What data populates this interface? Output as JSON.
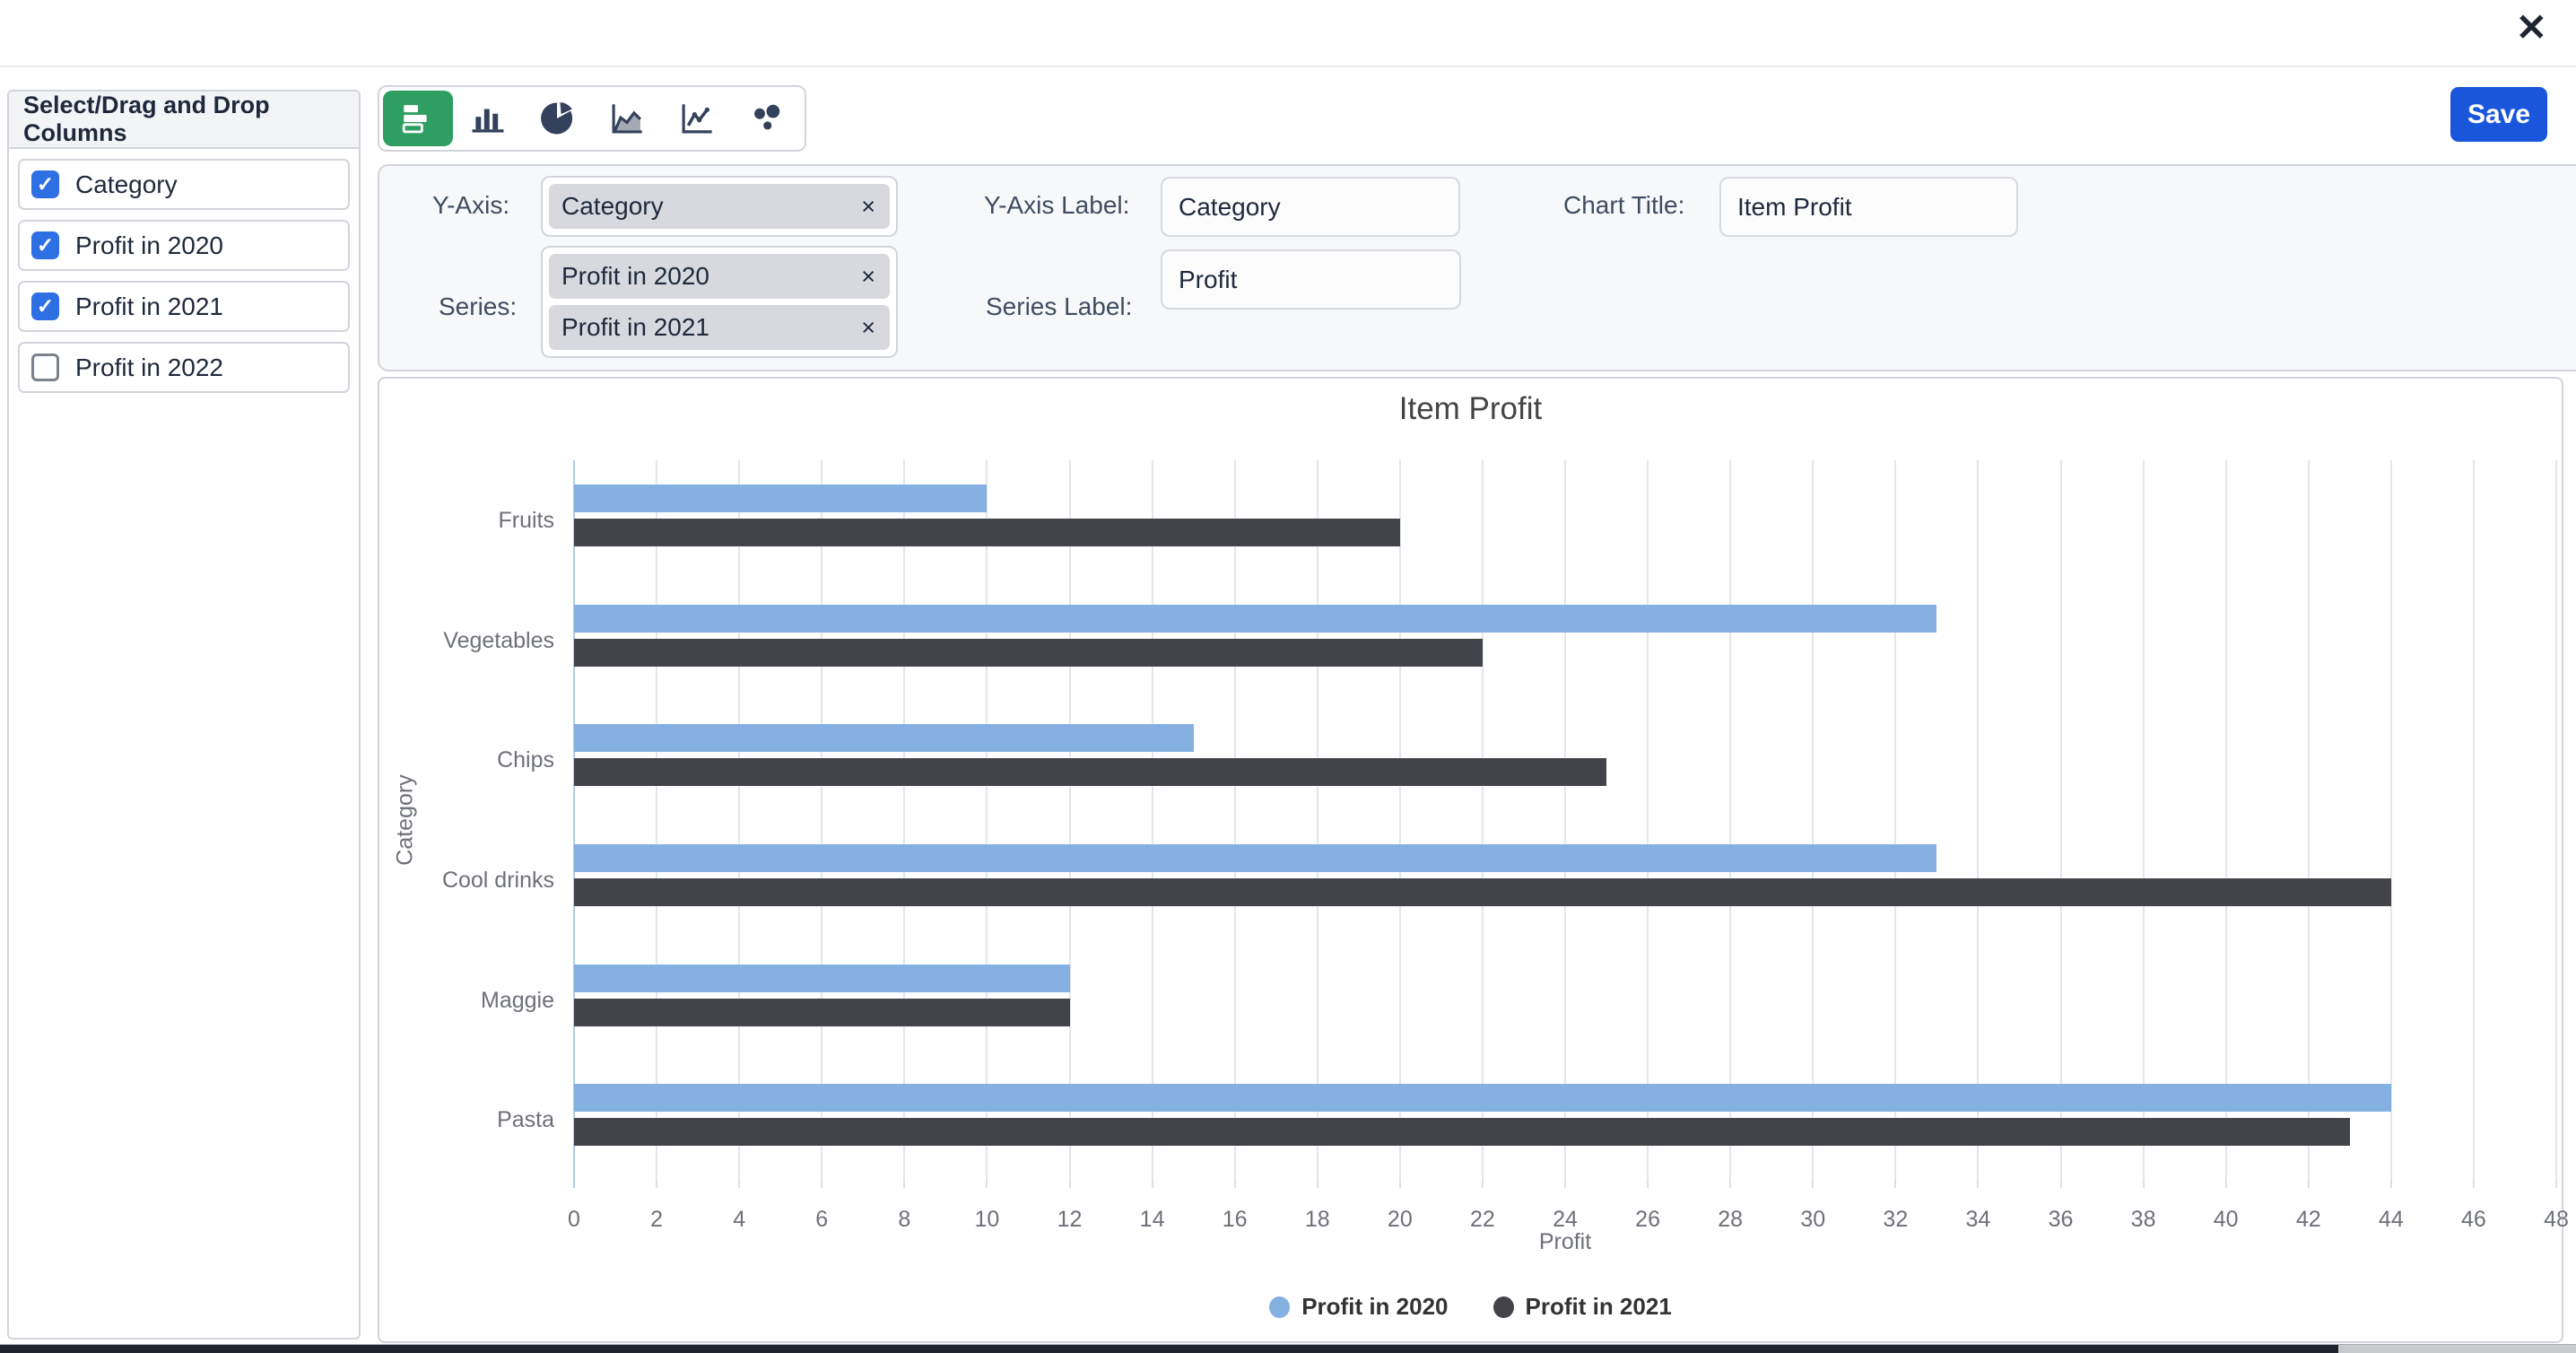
{
  "window": {
    "close_icon": "✕"
  },
  "sidebar": {
    "title": "Select/Drag and Drop Columns",
    "items": [
      {
        "label": "Category",
        "checked": true
      },
      {
        "label": "Profit in 2020",
        "checked": true
      },
      {
        "label": "Profit in 2021",
        "checked": true
      },
      {
        "label": "Profit in 2022",
        "checked": false
      }
    ]
  },
  "toolbar": {
    "save_label": "Save",
    "chart_types": [
      {
        "name": "horizontal-bar",
        "selected": true
      },
      {
        "name": "column",
        "selected": false
      },
      {
        "name": "pie",
        "selected": false
      },
      {
        "name": "area",
        "selected": false
      },
      {
        "name": "line",
        "selected": false
      },
      {
        "name": "scatter",
        "selected": false
      }
    ]
  },
  "fields": {
    "y_axis": {
      "label": "Y-Axis:",
      "chips": [
        "Category"
      ]
    },
    "series": {
      "label": "Series:",
      "chips": [
        "Profit in 2020",
        "Profit in 2021"
      ]
    },
    "y_axis_label": {
      "label": "Y-Axis Label:",
      "value": "Category"
    },
    "series_label": {
      "label": "Series Label:",
      "value": "Profit"
    },
    "chart_title": {
      "label": "Chart Title:",
      "value": "Item Profit"
    },
    "chip_remove_icon": "×"
  },
  "chart_data": {
    "type": "bar",
    "orientation": "horizontal",
    "title": "Item Profit",
    "categories": [
      "Fruits",
      "Vegetables",
      "Chips",
      "Cool drinks",
      "Maggie",
      "Pasta"
    ],
    "series": [
      {
        "name": "Profit in 2020",
        "color": "#85b0e2",
        "values": [
          10,
          33,
          15,
          33,
          12,
          44
        ]
      },
      {
        "name": "Profit in 2021",
        "color": "#43444a",
        "values": [
          20,
          22,
          25,
          44,
          12,
          43
        ]
      }
    ],
    "xlabel": "Profit",
    "ylabel": "Category",
    "xlim": [
      0,
      48
    ],
    "xtick_step": 2,
    "grid": true,
    "legend_position": "bottom"
  },
  "colors": {
    "accent_green": "#2f9e62",
    "save_blue": "#1a56db",
    "checkbox_blue": "#2f6fe4",
    "chip_gray": "#d7d9de",
    "panel_bg": "#f7f8f9",
    "border": "#d1d5db",
    "text_dark": "#1e293b",
    "chart_text": "#6e7079",
    "gridline": "#e3e6ec",
    "axis_line": "#b2cbe9",
    "scrollbar_thumb": "#20242e"
  }
}
